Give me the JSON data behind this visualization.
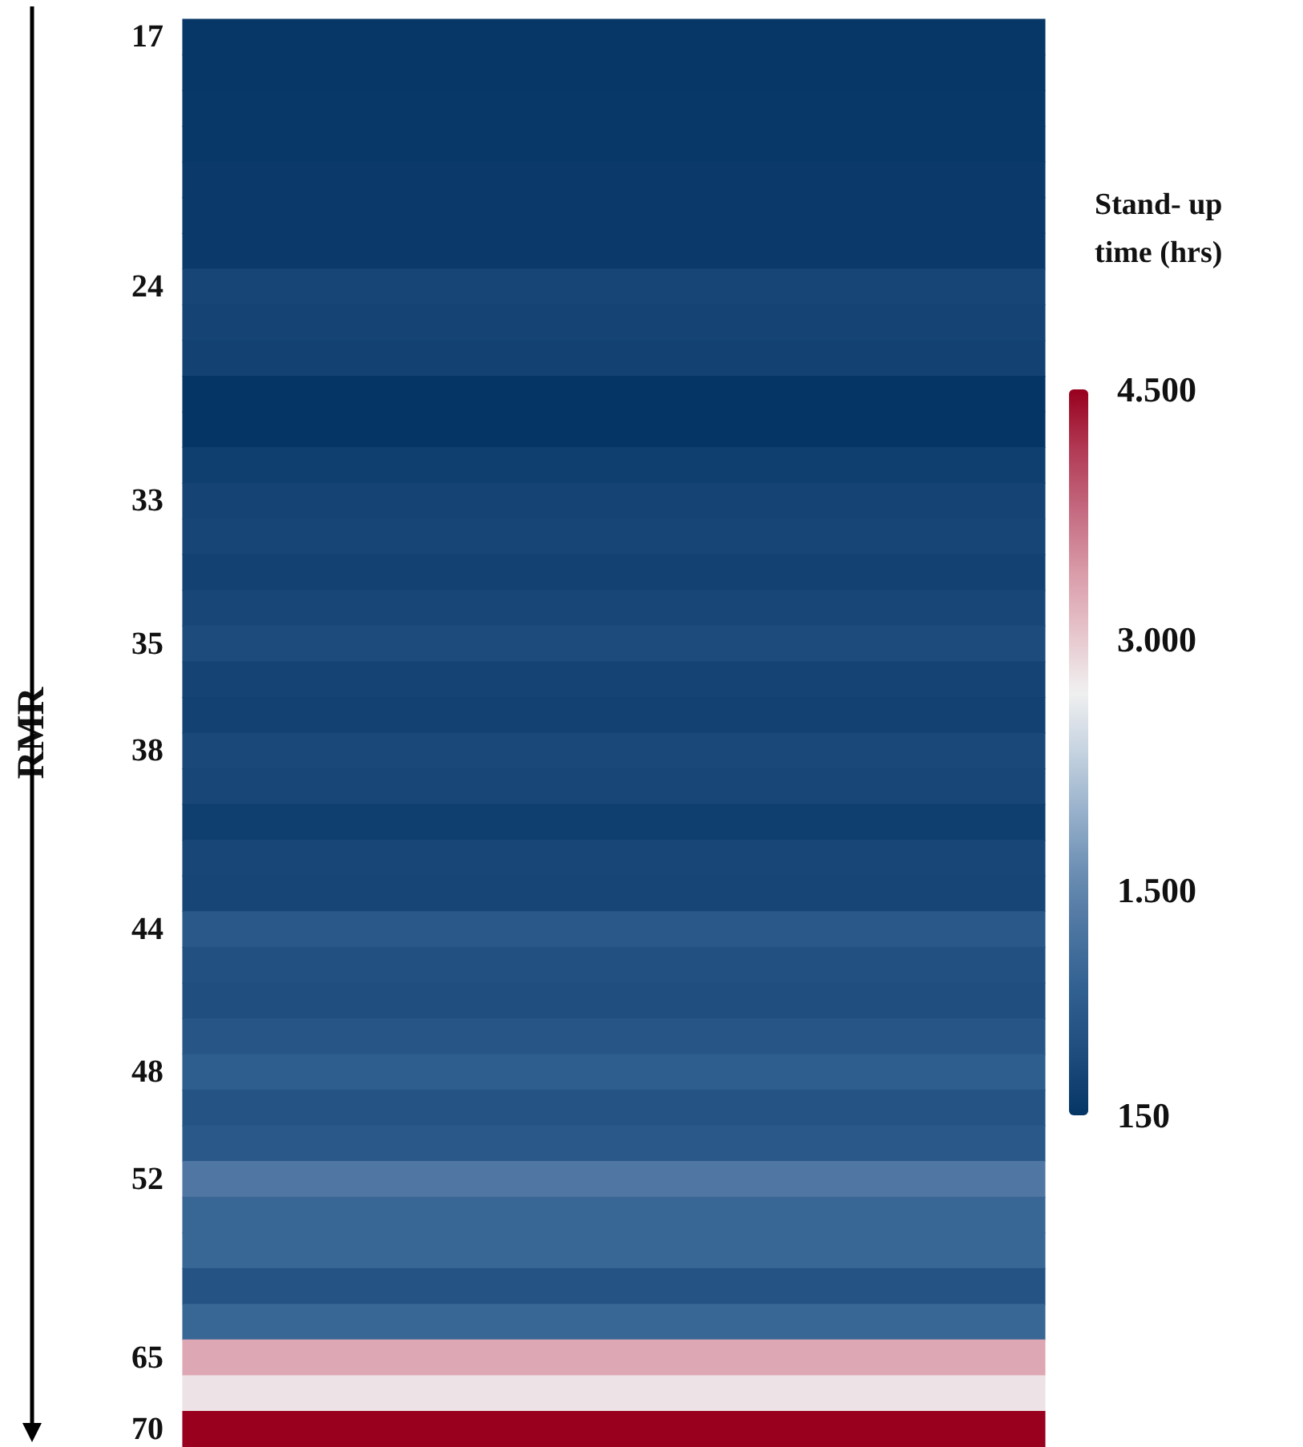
{
  "chart_data": {
    "type": "heatmap",
    "ylabel": "RMR",
    "clabel": "Stand- up time (hrs)",
    "categories": [
      null
    ],
    "y_categories": [
      "17",
      null,
      null,
      null,
      null,
      null,
      null,
      "24",
      null,
      null,
      null,
      null,
      null,
      "33",
      null,
      null,
      null,
      "35",
      null,
      null,
      "38",
      null,
      null,
      null,
      null,
      "44",
      null,
      null,
      null,
      "48",
      null,
      null,
      "52",
      null,
      null,
      null,
      null,
      "65",
      null,
      "70"
    ],
    "cells": [
      [
        180
      ],
      [
        180
      ],
      [
        200
      ],
      [
        200
      ],
      [
        220
      ],
      [
        230
      ],
      [
        230
      ],
      [
        400
      ],
      [
        380
      ],
      [
        350
      ],
      [
        150
      ],
      [
        150
      ],
      [
        300
      ],
      [
        380
      ],
      [
        400
      ],
      [
        350
      ],
      [
        420
      ],
      [
        500
      ],
      [
        380
      ],
      [
        350
      ],
      [
        450
      ],
      [
        420
      ],
      [
        300
      ],
      [
        420
      ],
      [
        400
      ],
      [
        750
      ],
      [
        600
      ],
      [
        550
      ],
      [
        700
      ],
      [
        850
      ],
      [
        650
      ],
      [
        750
      ],
      [
        1300
      ],
      [
        1000
      ],
      [
        1000
      ],
      [
        650
      ],
      [
        1000
      ],
      [
        3300
      ],
      [
        2800
      ],
      [
        4500
      ]
    ],
    "clim": [
      150,
      4500
    ],
    "cticks": [
      {
        "value": 150,
        "label": "150"
      },
      {
        "value": 1500,
        "label": "1.500"
      },
      {
        "value": 3000,
        "label": "3.000"
      },
      {
        "value": 4500,
        "label": "4.500"
      }
    ],
    "tick_labels": "y"
  }
}
